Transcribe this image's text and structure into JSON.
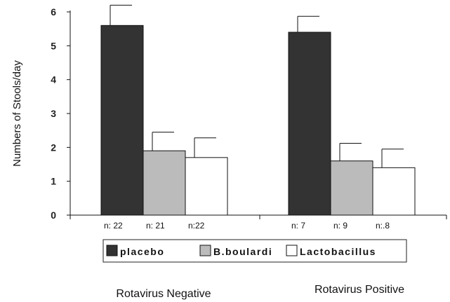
{
  "chart_data": {
    "type": "bar",
    "title": "",
    "ylabel": "Numbers of Stools/day",
    "xlabel": "",
    "ylim": [
      0,
      6
    ],
    "yticks": [
      0,
      1,
      2,
      3,
      4,
      5,
      6
    ],
    "grid": false,
    "legend_position": "bottom",
    "categories": [
      "Rotavirus Negative",
      "Rotavirus Positive"
    ],
    "series": [
      {
        "name": "placebo",
        "color": "#333333",
        "values": [
          5.6,
          5.4
        ],
        "error_upper": [
          6.2,
          5.87
        ],
        "n_labels": [
          "n: 22",
          "n: 7"
        ]
      },
      {
        "name": "B.boulardi",
        "color": "#bbbbbb",
        "values": [
          1.9,
          1.6
        ],
        "error_upper": [
          2.45,
          2.12
        ],
        "n_labels": [
          "n: 21",
          "n: 9"
        ]
      },
      {
        "name": "Lactobacillus",
        "color": "#ffffff",
        "values": [
          1.7,
          1.4
        ],
        "error_upper": [
          2.28,
          1.95
        ],
        "n_labels": [
          "n:22",
          "n:.8"
        ]
      }
    ]
  }
}
